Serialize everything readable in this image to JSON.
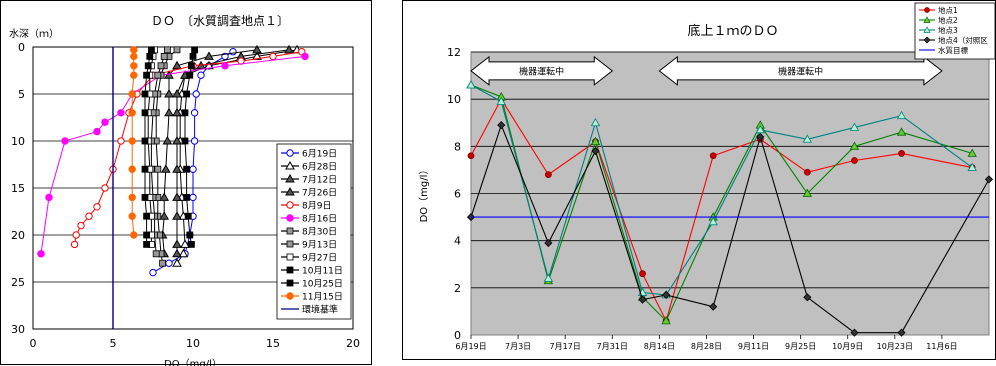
{
  "chart_data": [
    {
      "type": "line",
      "title": "ＤＯ　〔水質調査地点１〕",
      "ylabel": "水深（ｍ）",
      "xlabel": "DO（mg/l）",
      "xlim": [
        0,
        20
      ],
      "ylim": [
        30,
        0
      ],
      "xticks": [
        "0",
        "5",
        "10",
        "15",
        "20"
      ],
      "yticks": [
        "0",
        "5",
        "10",
        "15",
        "20",
        "25",
        "30"
      ],
      "legend_position": "right",
      "grid": "horizontal",
      "series": [
        {
          "name": "6月19日",
          "color": "#0000ff",
          "marker": "circle-open",
          "points": [
            [
              12.5,
              0.5
            ],
            [
              12,
              1
            ],
            [
              11,
              2
            ],
            [
              10.5,
              3
            ],
            [
              10.2,
              5
            ],
            [
              10.1,
              7
            ],
            [
              10.1,
              10
            ],
            [
              10,
              13
            ],
            [
              10,
              16
            ],
            [
              10,
              18
            ],
            [
              9.8,
              20
            ],
            [
              9.5,
              22
            ],
            [
              8.5,
              23
            ],
            [
              7.5,
              24
            ]
          ]
        },
        {
          "name": "6月28日",
          "color": "#000000",
          "marker": "triangle-open",
          "points": [
            [
              16.5,
              0.3
            ],
            [
              14,
              1
            ],
            [
              11,
              2
            ],
            [
              9.5,
              3
            ],
            [
              9.3,
              5
            ],
            [
              9.2,
              7
            ],
            [
              9.2,
              10
            ],
            [
              9.2,
              13
            ],
            [
              9.3,
              16
            ],
            [
              9.4,
              18
            ],
            [
              9.5,
              21
            ],
            [
              9.4,
              22
            ],
            [
              9,
              23
            ]
          ]
        },
        {
          "name": "7月12日",
          "color": "#000000",
          "marker": "triangle-filled",
          "points": [
            [
              16,
              0.3
            ],
            [
              13,
              1
            ],
            [
              10.5,
              2
            ],
            [
              9.5,
              3
            ],
            [
              9,
              5
            ],
            [
              9,
              7
            ],
            [
              9,
              10
            ],
            [
              9,
              13
            ],
            [
              9,
              16
            ],
            [
              9,
              18
            ],
            [
              9,
              21
            ],
            [
              9,
              22
            ]
          ]
        },
        {
          "name": "7月26日",
          "color": "#000000",
          "marker": "triangle-filled",
          "points": [
            [
              14,
              0.3
            ],
            [
              11,
              1
            ],
            [
              9,
              2
            ],
            [
              8.5,
              3
            ],
            [
              8.5,
              5
            ],
            [
              8.5,
              7
            ],
            [
              8.4,
              10
            ],
            [
              8.3,
              13
            ],
            [
              8.2,
              16
            ],
            [
              8.2,
              18
            ],
            [
              8.1,
              20
            ],
            [
              8.2,
              22
            ]
          ]
        },
        {
          "name": "8月9日",
          "color": "#ff0000",
          "marker": "circle-open",
          "points": [
            [
              16.8,
              0.5
            ],
            [
              15,
              1
            ],
            [
              13,
              1.5
            ],
            [
              10,
              2
            ],
            [
              7.5,
              3
            ],
            [
              6.5,
              5
            ],
            [
              6,
              7
            ],
            [
              5.5,
              10
            ],
            [
              5,
              13
            ],
            [
              4.5,
              15
            ],
            [
              4,
              17
            ],
            [
              3.5,
              18
            ],
            [
              3,
              19
            ],
            [
              2.7,
              20
            ],
            [
              2.6,
              21
            ]
          ]
        },
        {
          "name": "8月16日",
          "color": "#ff00ff",
          "marker": "circle-filled",
          "points": [
            [
              17,
              1
            ],
            [
              12,
              2
            ],
            [
              8,
              3
            ],
            [
              6.2,
              5
            ],
            [
              5.5,
              7
            ],
            [
              4.5,
              8
            ],
            [
              4,
              9
            ],
            [
              2,
              10
            ],
            [
              1,
              16
            ],
            [
              0.5,
              22
            ]
          ]
        },
        {
          "name": "8月30日",
          "color": "#000000",
          "marker": "square-gray",
          "points": [
            [
              9,
              0.3
            ],
            [
              8.5,
              1
            ],
            [
              8.2,
              2
            ],
            [
              8,
              3
            ],
            [
              7.8,
              5
            ],
            [
              7.7,
              7
            ],
            [
              7.7,
              10
            ],
            [
              7.8,
              13
            ],
            [
              7.8,
              16
            ],
            [
              7.8,
              18
            ],
            [
              7.9,
              20
            ],
            [
              8,
              22
            ],
            [
              8.1,
              23
            ]
          ]
        },
        {
          "name": "9月13日",
          "color": "#000000",
          "marker": "square-gray",
          "points": [
            [
              8.4,
              0.3
            ],
            [
              8.2,
              1
            ],
            [
              8,
              2
            ],
            [
              7.8,
              3
            ],
            [
              7.6,
              5
            ],
            [
              7.5,
              7
            ],
            [
              7.4,
              10
            ],
            [
              7.4,
              13
            ],
            [
              7.5,
              16
            ],
            [
              7.6,
              18
            ],
            [
              7.6,
              20
            ],
            [
              7.7,
              22
            ]
          ]
        },
        {
          "name": "9月27日",
          "color": "#000000",
          "marker": "square-open",
          "points": [
            [
              7.6,
              0.3
            ],
            [
              7.5,
              1
            ],
            [
              7.4,
              2
            ],
            [
              7.3,
              3
            ],
            [
              7.3,
              5
            ],
            [
              7.2,
              7
            ],
            [
              7.2,
              10
            ],
            [
              7.3,
              13
            ],
            [
              7.3,
              16
            ],
            [
              7.4,
              18
            ],
            [
              7.4,
              20
            ],
            [
              7.4,
              21
            ]
          ]
        },
        {
          "name": "10月11日",
          "color": "#000000",
          "marker": "square-filled",
          "points": [
            [
              10.1,
              0.3
            ],
            [
              10,
              1
            ],
            [
              9.9,
              2
            ],
            [
              9.8,
              3
            ],
            [
              9.6,
              5
            ],
            [
              9.5,
              7
            ],
            [
              9.5,
              10
            ],
            [
              9.6,
              13
            ],
            [
              9.6,
              16
            ],
            [
              9.7,
              18
            ],
            [
              9.8,
              20
            ],
            [
              9.9,
              21
            ]
          ]
        },
        {
          "name": "10月25日",
          "color": "#000000",
          "marker": "square-filled",
          "points": [
            [
              7.4,
              0.3
            ],
            [
              7.3,
              1
            ],
            [
              7.2,
              2
            ],
            [
              7.1,
              3
            ],
            [
              7,
              5
            ],
            [
              7,
              7
            ],
            [
              7,
              10
            ],
            [
              7,
              13
            ],
            [
              7,
              16
            ],
            [
              7.1,
              18
            ],
            [
              7.1,
              20
            ],
            [
              7.1,
              21
            ]
          ]
        },
        {
          "name": "11月15日",
          "color": "#ff6600",
          "marker": "circle-filled",
          "points": [
            [
              6.3,
              0.3
            ],
            [
              6.3,
              1
            ],
            [
              6.3,
              2
            ],
            [
              6.3,
              3
            ],
            [
              6.2,
              5
            ],
            [
              6.2,
              7
            ],
            [
              6.2,
              10
            ],
            [
              6.2,
              13
            ],
            [
              6.2,
              16
            ],
            [
              6.2,
              18
            ],
            [
              6.3,
              20
            ]
          ]
        },
        {
          "name": "環境基準",
          "color": "#000080",
          "marker": "none",
          "points": [
            [
              5,
              0
            ],
            [
              5,
              30
            ]
          ]
        }
      ]
    },
    {
      "type": "line",
      "title": "底上１ｍのＤＯ",
      "ylabel": "DO（mg/l）",
      "xlabel": "",
      "ylim": [
        0,
        12
      ],
      "yticks": [
        "0",
        "2",
        "4",
        "6",
        "8",
        "10",
        "12"
      ],
      "xlim": [
        "6月19日",
        "11月20日"
      ],
      "xticks": [
        "6月19日",
        "7月3日",
        "7月17日",
        "7月31日",
        "8月14日",
        "8月28日",
        "9月11日",
        "9月25日",
        "10月9日",
        "10月23日",
        "11月6日"
      ],
      "grid": "horizontal",
      "background": "#c0c0c0",
      "legend_position": "top-right",
      "annotations": [
        {
          "text": "機器運転中",
          "from": "6月19日",
          "to": "7月31日",
          "y": 11.2
        },
        {
          "text": "機器運転中",
          "from": "8月14日",
          "to": "11月6日",
          "y": 11.2
        }
      ],
      "series": [
        {
          "name": "地点1",
          "color": "#ff0000",
          "marker": "circle",
          "x": [
            "6月19日",
            "6月28日",
            "7月12日",
            "7月26日",
            "8月9日",
            "8月16日",
            "8月30日",
            "9月13日",
            "9月27日",
            "10月11日",
            "10月25日",
            "11月15日"
          ],
          "y": [
            7.6,
            10.0,
            6.8,
            8.2,
            2.6,
            0.6,
            7.6,
            8.3,
            6.9,
            7.4,
            7.7,
            7.1
          ]
        },
        {
          "name": "地点2",
          "color": "#008000",
          "marker": "triangle",
          "x": [
            "6月19日",
            "6月28日",
            "7月12日",
            "7月26日",
            "8月9日",
            "8月16日",
            "8月30日",
            "9月13日",
            "9月27日",
            "10月11日",
            "10月25日",
            "11月15日"
          ],
          "y": [
            10.6,
            10.1,
            2.3,
            8.2,
            1.6,
            0.6,
            5.0,
            8.9,
            6.0,
            8.0,
            8.6,
            7.7
          ]
        },
        {
          "name": "地点3",
          "color": "#008080",
          "marker": "triangle-open",
          "x": [
            "6月19日",
            "6月28日",
            "7月12日",
            "7月26日",
            "8月9日",
            "8月16日",
            "8月30日",
            "9月13日",
            "9月27日",
            "10月11日",
            "10月25日",
            "11月15日"
          ],
          "y": [
            10.6,
            9.9,
            2.4,
            9.0,
            1.8,
            1.7,
            4.8,
            8.7,
            8.3,
            8.8,
            9.3,
            7.1
          ]
        },
        {
          "name": "地点4（対照区",
          "color": "#000000",
          "marker": "diamond",
          "x": [
            "6月19日",
            "6月28日",
            "7月12日",
            "7月26日",
            "8月9日",
            "8月16日",
            "8月30日",
            "9月13日",
            "9月27日",
            "10月11日",
            "10月25日",
            "11月20日"
          ],
          "y": [
            5.0,
            8.9,
            3.9,
            7.8,
            1.5,
            1.7,
            1.2,
            8.4,
            1.6,
            0.1,
            0.1,
            6.6
          ]
        },
        {
          "name": "水質目標",
          "color": "#0000ff",
          "marker": "none",
          "x": [
            "6月19日",
            "11月20日"
          ],
          "y": [
            5.0,
            5.0
          ]
        }
      ]
    }
  ]
}
